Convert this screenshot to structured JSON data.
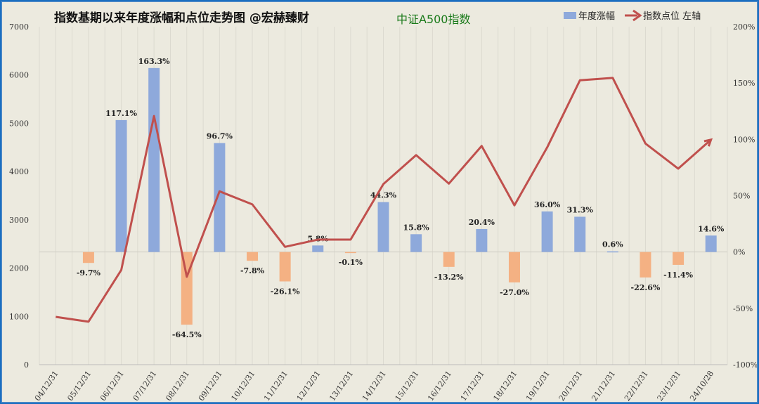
{
  "chart_data": {
    "type": "bar+line",
    "title": "指数基期以来年度涨幅和点位走势图  @宏赫臻财",
    "subtitle": "中证A500指数",
    "categories": [
      "04/12/31",
      "05/12/31",
      "06/12/31",
      "07/12/31",
      "08/12/31",
      "09/12/31",
      "10/12/31",
      "11/12/31",
      "12/12/31",
      "13/12/31",
      "14/12/31",
      "15/12/31",
      "16/12/31",
      "17/12/31",
      "18/12/31",
      "19/12/31",
      "20/12/31",
      "21/12/31",
      "22/12/31",
      "23/12/31",
      "24/10/28"
    ],
    "series": [
      {
        "name": "年度涨幅",
        "type": "bar",
        "axis": "right",
        "unit": "%",
        "values": [
          null,
          -9.7,
          117.1,
          163.3,
          -64.5,
          96.7,
          -7.8,
          -26.1,
          5.8,
          -0.1,
          44.3,
          15.8,
          -13.2,
          20.4,
          -27.0,
          36.0,
          31.3,
          0.6,
          -22.6,
          -11.4,
          14.6
        ],
        "labels": [
          "",
          "-9.7%",
          "117.1%",
          "163.3%",
          "-64.5%",
          "96.7%",
          "-7.8%",
          "-26.1%",
          "5.8%",
          "-0.1%",
          "44.3%",
          "15.8%",
          "-13.2%",
          "20.4%",
          "-27.0%",
          "36.0%",
          "31.3%",
          "0.6%",
          "-22.6%",
          "-11.4%",
          "14.6%"
        ],
        "color_pos": "#8EA9DB",
        "color_neg": "#F4B183"
      },
      {
        "name": "指数点位 左轴",
        "type": "line",
        "axis": "left",
        "values": [
          990,
          890,
          1960,
          5150,
          1820,
          3590,
          3320,
          2440,
          2590,
          2590,
          3740,
          4340,
          3750,
          4530,
          3300,
          4500,
          5890,
          5940,
          4580,
          4060,
          4660
        ],
        "color": "#C0504D"
      }
    ],
    "left_axis": {
      "ylim": [
        0,
        7000
      ],
      "ticks": [
        "0",
        "1000",
        "2000",
        "3000",
        "4000",
        "5000",
        "6000",
        "7000"
      ]
    },
    "right_axis": {
      "ylim": [
        -100,
        200
      ],
      "ticks": [
        "-100%",
        "-50%",
        "0%",
        "50%",
        "100%",
        "150%",
        "200%"
      ]
    },
    "grid": "vertical",
    "legend": "top-right"
  }
}
